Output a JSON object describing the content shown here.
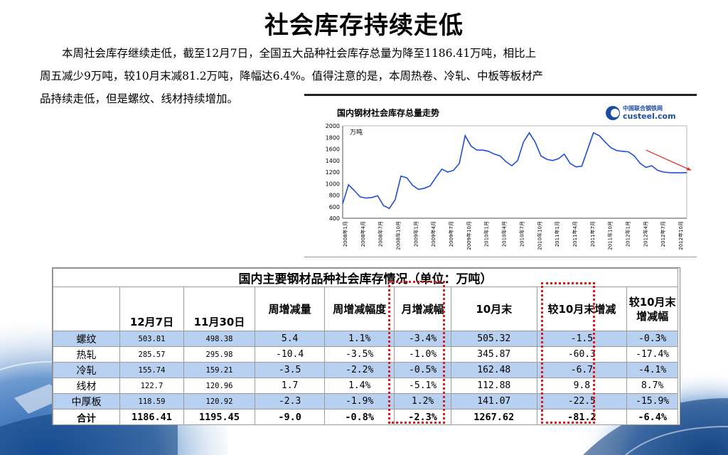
{
  "slide": {
    "title": "社会库存持续走低",
    "paragraph_lines": [
      "　　本周社会库存继续走低，截至12月7日，全国五大品种社会库存总量为降至1186.41万吨，相比上",
      "周五减少9万吨，较10月末减81.2万吨，降幅达6.4%。值得注意的是，本周热卷、冷轧、中板等板材产",
      "品持续走低，但是螺纹、线材持续增加。"
    ]
  },
  "chart": {
    "logo_top": "中国联合钢铁网",
    "logo_bottom": "custeel.com",
    "colors": {
      "line": "#1f4fd8",
      "arrow": "#e02020",
      "logo": "#1c4da0"
    },
    "chart_data": {
      "type": "line",
      "title": "国内钢材社会库存总量走势",
      "ylabel": "万吨",
      "ylim": [
        400,
        2000
      ],
      "yticks": [
        2000,
        1800,
        1600,
        1400,
        1200,
        1000,
        800,
        600,
        400
      ],
      "xticks": [
        "2008年1月",
        "2008年4月",
        "2008年7月",
        "2008年10月",
        "2009年1月",
        "2009年4月",
        "2009年7月",
        "2009年10月",
        "2010年1月",
        "2010年4月",
        "2010年7月",
        "2010年10月",
        "2011年1月",
        "2011年4月",
        "2011年7月",
        "2011年10月",
        "2012年1月",
        "2012年4月",
        "2012年7月",
        "2012年10月"
      ],
      "x": [
        0,
        1,
        2,
        3,
        4,
        5,
        6,
        7,
        8,
        9,
        10,
        11,
        12,
        13,
        14,
        15,
        16,
        17,
        18,
        19,
        20,
        21,
        22,
        23,
        24,
        25,
        26,
        27,
        28,
        29,
        30,
        31,
        32,
        33,
        34,
        35,
        36,
        37,
        38,
        39,
        40,
        41,
        42,
        43,
        44,
        45,
        46,
        47,
        48,
        49,
        50,
        51,
        52,
        53,
        54,
        55,
        56,
        57,
        58,
        59
      ],
      "series": [
        {
          "values": [
            650,
            980,
            880,
            770,
            750,
            760,
            790,
            620,
            570,
            720,
            1130,
            1100,
            970,
            900,
            920,
            960,
            1110,
            1250,
            1200,
            1230,
            1350,
            1830,
            1650,
            1580,
            1580,
            1560,
            1510,
            1480,
            1380,
            1310,
            1400,
            1720,
            1880,
            1720,
            1480,
            1420,
            1400,
            1430,
            1510,
            1350,
            1290,
            1300,
            1590,
            1880,
            1830,
            1720,
            1620,
            1570,
            1560,
            1550,
            1480,
            1350,
            1280,
            1310,
            1230,
            1200,
            1190,
            1187,
            1186,
            1190
          ]
        }
      ]
    }
  },
  "table": {
    "caption": "国内主要钢材品种社会库存情况（单位：万吨）",
    "headers": [
      "",
      "12月7日",
      "11月30日",
      "周增减量",
      "周增减幅度",
      "月增减幅",
      "10月末",
      "较10月末增减",
      "较10月末增减幅"
    ],
    "rows": [
      [
        "螺纹",
        "503.81",
        "498.38",
        "5.4",
        "1.1%",
        "-3.4%",
        "505.32",
        "-1.5",
        "-0.3%"
      ],
      [
        "热轧",
        "285.57",
        "295.98",
        "-10.4",
        "-3.5%",
        "-1.0%",
        "345.87",
        "-60.3",
        "-17.4%"
      ],
      [
        "冷轧",
        "155.74",
        "159.21",
        "-3.5",
        "-2.2%",
        "-0.5%",
        "162.48",
        "-6.7",
        "-4.1%"
      ],
      [
        "线材",
        "122.7",
        "120.96",
        "1.7",
        "1.4%",
        "-5.1%",
        "112.88",
        "9.8",
        "8.7%"
      ],
      [
        "中厚板",
        "118.59",
        "120.92",
        "-2.3",
        "-1.9%",
        "1.2%",
        "141.07",
        "-22.5",
        "-15.9%"
      ],
      [
        "合计",
        "1186.41",
        "1195.45",
        "-9.0",
        "-0.8%",
        "-2.3%",
        "1267.62",
        "-81.2",
        "-6.4%"
      ]
    ],
    "colors": {
      "blue_row": "#b8d0f0",
      "highlight_box": "#e01818"
    }
  }
}
